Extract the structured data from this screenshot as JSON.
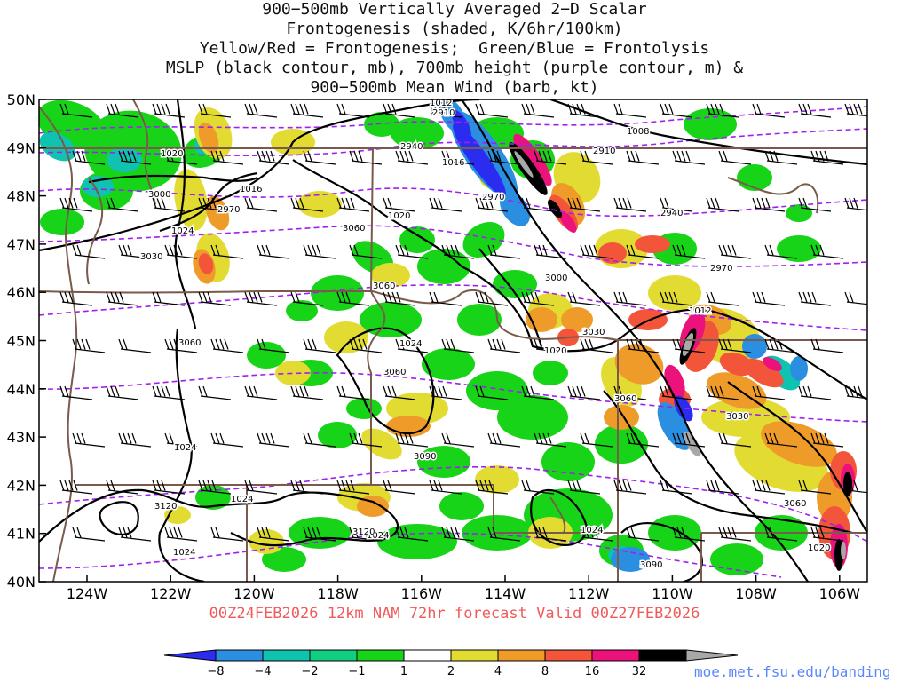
{
  "title_lines": [
    "900−500mb Vertically Averaged 2−D Scalar",
    "Frontogenesis (shaded, K/6hr/100km)",
    "Yellow/Red = Frontogenesis;  Green/Blue = Frontolysis",
    "MSLP (black contour, mb), 700mb height (purple contour, m) &",
    "900−500mb Mean Wind (barb, kt)"
  ],
  "lat_labels": [
    "50N",
    "49N",
    "48N",
    "47N",
    "46N",
    "45N",
    "44N",
    "43N",
    "42N",
    "41N",
    "40N"
  ],
  "lon_labels": [
    "124W",
    "122W",
    "120W",
    "118W",
    "116W",
    "114W",
    "112W",
    "110W",
    "108W",
    "106W"
  ],
  "footer": "00Z24FEB2026 12km NAM 72hr forecast Valid 00Z27FEB2026",
  "url": "moe.met.fsu.edu/banding",
  "colorbar": {
    "labels": [
      "−8",
      "−4",
      "−2",
      "−1",
      "1",
      "2",
      "4",
      "8",
      "16",
      "32"
    ],
    "colors": [
      "#2a2cf0",
      "#2a8fe0",
      "#10c2b0",
      "#10cf80",
      "#18d418",
      "#ffffff",
      "#e2dc32",
      "#ef9b2a",
      "#f3553a",
      "#ec127c",
      "#000000",
      "#a8a8a8"
    ]
  },
  "mslp_labels": [
    "1012",
    "1008",
    "1020",
    "1016",
    "1024",
    "1020",
    "1024",
    "1016",
    "1012",
    "1024",
    "1024",
    "1024",
    "1024",
    "1024",
    "1020",
    "1020"
  ],
  "height_labels": [
    "2910",
    "2910",
    "2940",
    "2970",
    "2970",
    "3000",
    "3060",
    "3030",
    "3060",
    "3060",
    "2940",
    "2970",
    "3000",
    "3030",
    "3030",
    "3060",
    "3060",
    "3090",
    "3060",
    "3090",
    "3120",
    "3120"
  ]
}
